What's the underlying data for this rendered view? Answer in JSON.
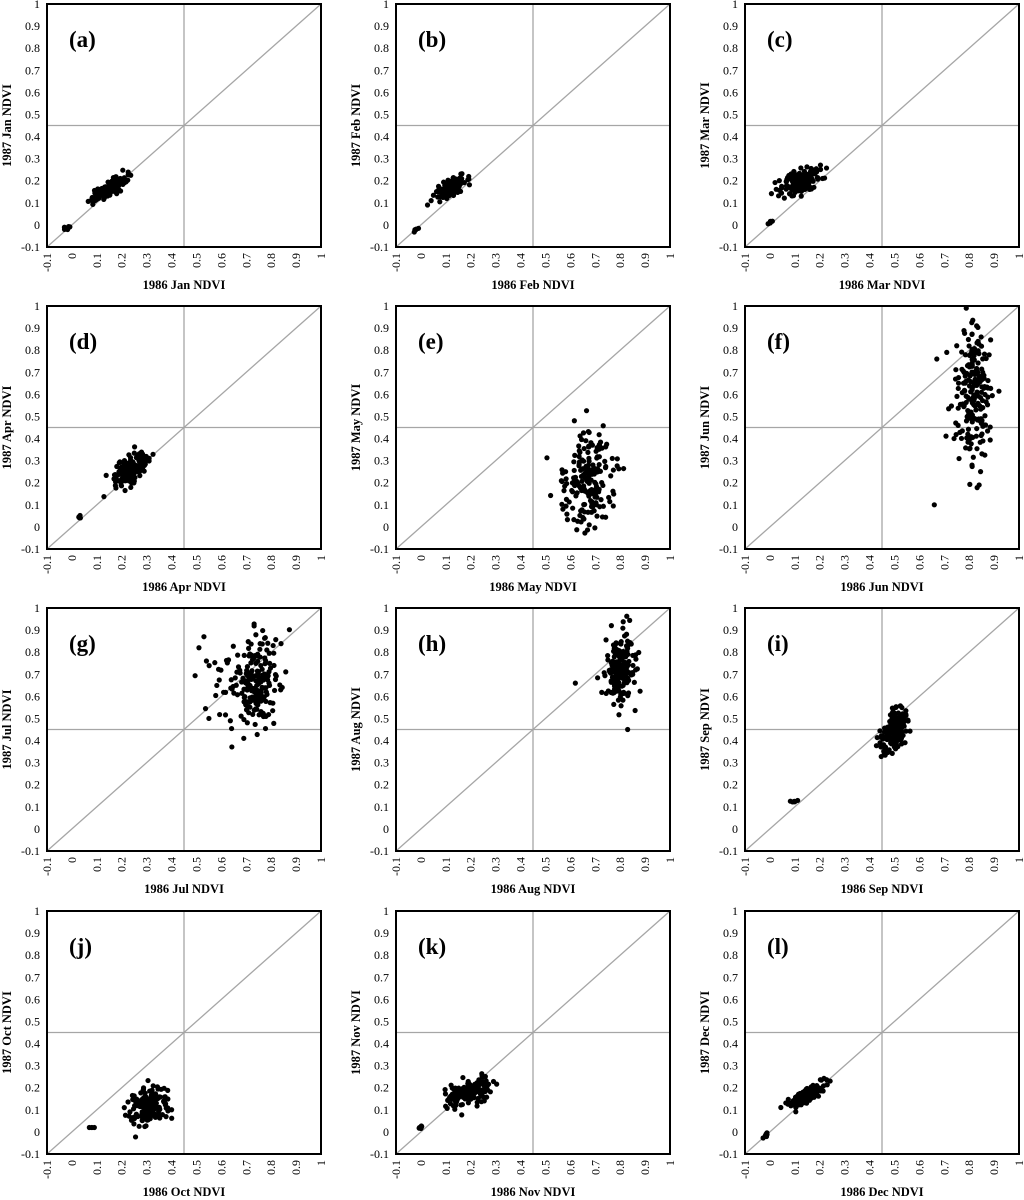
{
  "chart_data": [
    {
      "type": "scatter",
      "panel_label": "(a)",
      "xlabel": "1986 Jan NDVI",
      "ylabel": "1987 Jan NDVI",
      "xlim": [
        -0.1,
        1
      ],
      "ylim": [
        -0.1,
        1
      ],
      "xticks": [
        "-0.1",
        "0",
        "0.1",
        "0.2",
        "0.3",
        "0.4",
        "0.5",
        "0.6",
        "0.7",
        "0.8",
        "0.9",
        "1"
      ],
      "yticks": [
        "-0.1",
        "0",
        "0.1",
        "0.2",
        "0.3",
        "0.4",
        "0.5",
        "0.6",
        "0.7",
        "0.8",
        "0.9",
        "1"
      ],
      "reference_lines": {
        "x": 0.45,
        "y": 0.45,
        "diagonal": true
      },
      "clusters": [
        {
          "cx": 0.145,
          "cy": 0.16,
          "sx": 0.035,
          "sy": 0.03,
          "n": 150,
          "rho": 0.82
        },
        {
          "cx": -0.02,
          "cy": -0.015,
          "sx": 0.006,
          "sy": 0.006,
          "n": 6,
          "rho": 0.5
        }
      ]
    },
    {
      "type": "scatter",
      "panel_label": "(b)",
      "xlabel": "1986 Feb NDVI",
      "ylabel": "1987 Feb NDVI",
      "xlim": [
        -0.1,
        1
      ],
      "ylim": [
        -0.1,
        1
      ],
      "xticks": [
        "-0.1",
        "0",
        "0.1",
        "0.2",
        "0.3",
        "0.4",
        "0.5",
        "0.6",
        "0.7",
        "0.8",
        "0.9",
        "1"
      ],
      "yticks": [
        "-0.1",
        "0",
        "0.1",
        "0.2",
        "0.3",
        "0.4",
        "0.5",
        "0.6",
        "0.7",
        "0.8",
        "0.9",
        "1"
      ],
      "reference_lines": {
        "x": 0.45,
        "y": 0.45,
        "diagonal": true
      },
      "clusters": [
        {
          "cx": 0.12,
          "cy": 0.17,
          "sx": 0.03,
          "sy": 0.025,
          "n": 150,
          "rho": 0.7
        },
        {
          "cx": -0.015,
          "cy": -0.015,
          "sx": 0.006,
          "sy": 0.006,
          "n": 6,
          "rho": 0.5
        }
      ]
    },
    {
      "type": "scatter",
      "panel_label": "(c)",
      "xlabel": "1986 Mar NDVI",
      "ylabel": "1987 Mar NDVI",
      "xlim": [
        -0.1,
        1
      ],
      "ylim": [
        -0.1,
        1
      ],
      "xticks": [
        "-0.1",
        "0",
        "0.1",
        "0.2",
        "0.3",
        "0.4",
        "0.5",
        "0.6",
        "0.7",
        "0.8",
        "0.9",
        "1"
      ],
      "yticks": [
        "-0.1",
        "0",
        "0.1",
        "0.2",
        "0.3",
        "0.4",
        "0.5",
        "0.6",
        "0.7",
        "0.8",
        "0.9",
        "1"
      ],
      "reference_lines": {
        "x": 0.45,
        "y": 0.45,
        "diagonal": true
      },
      "clusters": [
        {
          "cx": 0.12,
          "cy": 0.2,
          "sx": 0.04,
          "sy": 0.03,
          "n": 180,
          "rho": 0.45
        },
        {
          "cx": 0.0,
          "cy": 0.01,
          "sx": 0.005,
          "sy": 0.005,
          "n": 5,
          "rho": 0.5
        }
      ]
    },
    {
      "type": "scatter",
      "panel_label": "(d)",
      "xlabel": "1986 Apr NDVI",
      "ylabel": "1987 Apr NDVI",
      "xlim": [
        -0.1,
        1
      ],
      "ylim": [
        -0.1,
        1
      ],
      "xticks": [
        "-0.1",
        "0",
        "0.1",
        "0.2",
        "0.3",
        "0.4",
        "0.5",
        "0.6",
        "0.7",
        "0.8",
        "0.9",
        "1"
      ],
      "yticks": [
        "-0.1",
        "0",
        "0.1",
        "0.2",
        "0.3",
        "0.4",
        "0.5",
        "0.6",
        "0.7",
        "0.8",
        "0.9",
        "1"
      ],
      "reference_lines": {
        "x": 0.45,
        "y": 0.45,
        "diagonal": true
      },
      "clusters": [
        {
          "cx": 0.24,
          "cy": 0.27,
          "sx": 0.035,
          "sy": 0.04,
          "n": 160,
          "rho": 0.55
        },
        {
          "cx": 0.03,
          "cy": 0.045,
          "sx": 0.004,
          "sy": 0.004,
          "n": 5,
          "rho": 0.5
        }
      ]
    },
    {
      "type": "scatter",
      "panel_label": "(e)",
      "xlabel": "1986 May NDVI",
      "ylabel": "1987 May NDVI",
      "xlim": [
        -0.1,
        1
      ],
      "ylim": [
        -0.1,
        1
      ],
      "xticks": [
        "-0.1",
        "0",
        "0.1",
        "0.2",
        "0.3",
        "0.4",
        "0.5",
        "0.6",
        "0.7",
        "0.8",
        "0.9",
        "1"
      ],
      "yticks": [
        "-0.1",
        "0",
        "0.1",
        "0.2",
        "0.3",
        "0.4",
        "0.5",
        "0.6",
        "0.7",
        "0.8",
        "0.9",
        "1"
      ],
      "reference_lines": {
        "x": 0.45,
        "y": 0.45,
        "diagonal": true
      },
      "clusters": [
        {
          "cx": 0.67,
          "cy": 0.21,
          "sx": 0.055,
          "sy": 0.11,
          "n": 180,
          "rho": 0.05
        }
      ]
    },
    {
      "type": "scatter",
      "panel_label": "(f)",
      "xlabel": "1986 Jun NDVI",
      "ylabel": "1987 Jun NDVI",
      "xlim": [
        -0.1,
        1
      ],
      "ylim": [
        -0.1,
        1
      ],
      "xticks": [
        "-0.1",
        "0",
        "0.1",
        "0.2",
        "0.3",
        "0.4",
        "0.5",
        "0.6",
        "0.7",
        "0.8",
        "0.9",
        "1"
      ],
      "yticks": [
        "-0.1",
        "0",
        "0.1",
        "0.2",
        "0.3",
        "0.4",
        "0.5",
        "0.6",
        "0.7",
        "0.8",
        "0.9",
        "1"
      ],
      "reference_lines": {
        "x": 0.45,
        "y": 0.45,
        "diagonal": true
      },
      "clusters": [
        {
          "cx": 0.82,
          "cy": 0.6,
          "sx": 0.035,
          "sy": 0.15,
          "n": 200,
          "rho": 0.0
        }
      ],
      "points": [
        [
          0.66,
          0.1
        ],
        [
          0.67,
          0.76
        ],
        [
          0.71,
          0.79
        ],
        [
          0.75,
          0.82
        ],
        [
          0.83,
          0.91
        ],
        [
          0.84,
          0.19
        ]
      ]
    },
    {
      "type": "scatter",
      "panel_label": "(g)",
      "xlabel": "1986 Jul NDVI",
      "ylabel": "1987 Jul NDVI",
      "xlim": [
        -0.1,
        1
      ],
      "ylim": [
        -0.1,
        1
      ],
      "xticks": [
        "-0.1",
        "0",
        "0.1",
        "0.2",
        "0.3",
        "0.4",
        "0.5",
        "0.6",
        "0.7",
        "0.8",
        "0.9",
        "1"
      ],
      "yticks": [
        "-0.1",
        "0",
        "0.1",
        "0.2",
        "0.3",
        "0.4",
        "0.5",
        "0.6",
        "0.7",
        "0.8",
        "0.9",
        "1"
      ],
      "reference_lines": {
        "x": 0.45,
        "y": 0.45,
        "diagonal": true
      },
      "clusters": [
        {
          "cx": 0.75,
          "cy": 0.66,
          "sx": 0.045,
          "sy": 0.1,
          "n": 180,
          "rho": 0.1
        },
        {
          "cx": 0.62,
          "cy": 0.68,
          "sx": 0.07,
          "sy": 0.09,
          "n": 30,
          "rho": 0.2
        }
      ],
      "points": [
        [
          0.51,
          0.82
        ],
        [
          0.53,
          0.87
        ],
        [
          0.54,
          0.76
        ],
        [
          0.55,
          0.5
        ],
        [
          0.69,
          0.41
        ]
      ]
    },
    {
      "type": "scatter",
      "panel_label": "(h)",
      "xlabel": "1986 Aug NDVI",
      "ylabel": "1987 Aug NDVI",
      "xlim": [
        -0.1,
        1
      ],
      "ylim": [
        -0.1,
        1
      ],
      "xticks": [
        "-0.1",
        "0",
        "0.1",
        "0.2",
        "0.3",
        "0.4",
        "0.5",
        "0.6",
        "0.7",
        "0.8",
        "0.9",
        "1"
      ],
      "yticks": [
        "-0.1",
        "0",
        "0.1",
        "0.2",
        "0.3",
        "0.4",
        "0.5",
        "0.6",
        "0.7",
        "0.8",
        "0.9",
        "1"
      ],
      "reference_lines": {
        "x": 0.45,
        "y": 0.45,
        "diagonal": true
      },
      "clusters": [
        {
          "cx": 0.8,
          "cy": 0.72,
          "sx": 0.03,
          "sy": 0.08,
          "n": 170,
          "rho": 0.1
        }
      ],
      "points": [
        [
          0.62,
          0.66
        ],
        [
          0.83,
          0.45
        ]
      ]
    },
    {
      "type": "scatter",
      "panel_label": "(i)",
      "xlabel": "1986 Sep NDVI",
      "ylabel": "1987 Sep NDVI",
      "xlim": [
        -0.1,
        1
      ],
      "ylim": [
        -0.1,
        1
      ],
      "xticks": [
        "-0.1",
        "0",
        "0.1",
        "0.2",
        "0.3",
        "0.4",
        "0.5",
        "0.6",
        "0.7",
        "0.8",
        "0.9",
        "1"
      ],
      "yticks": [
        "-0.1",
        "0",
        "0.1",
        "0.2",
        "0.3",
        "0.4",
        "0.5",
        "0.6",
        "0.7",
        "0.8",
        "0.9",
        "1"
      ],
      "reference_lines": {
        "x": 0.45,
        "y": 0.45,
        "diagonal": true
      },
      "clusters": [
        {
          "cx": 0.5,
          "cy": 0.44,
          "sx": 0.025,
          "sy": 0.05,
          "n": 170,
          "rho": 0.35
        },
        {
          "cx": 0.1,
          "cy": 0.125,
          "sx": 0.008,
          "sy": 0.004,
          "n": 6,
          "rho": 0.5
        }
      ]
    },
    {
      "type": "scatter",
      "panel_label": "(j)",
      "xlabel": "1986 Oct NDVI",
      "ylabel": "1987 Oct NDVI",
      "xlim": [
        -0.1,
        1
      ],
      "ylim": [
        -0.1,
        1
      ],
      "xticks": [
        "-0.1",
        "0",
        "0.1",
        "0.2",
        "0.3",
        "0.4",
        "0.5",
        "0.6",
        "0.7",
        "0.8",
        "0.9",
        "1"
      ],
      "yticks": [
        "-0.1",
        "0",
        "0.1",
        "0.2",
        "0.3",
        "0.4",
        "0.5",
        "0.6",
        "0.7",
        "0.8",
        "0.9",
        "1"
      ],
      "reference_lines": {
        "x": 0.45,
        "y": 0.45,
        "diagonal": true
      },
      "clusters": [
        {
          "cx": 0.31,
          "cy": 0.12,
          "sx": 0.04,
          "sy": 0.04,
          "n": 170,
          "rho": 0.2
        }
      ],
      "points": [
        [
          0.07,
          0.02
        ],
        [
          0.08,
          0.02
        ],
        [
          0.09,
          0.02
        ]
      ]
    },
    {
      "type": "scatter",
      "panel_label": "(k)",
      "xlabel": "1986 Nov NDVI",
      "ylabel": "1987 Nov NDVI",
      "xlim": [
        -0.1,
        1
      ],
      "ylim": [
        -0.1,
        1
      ],
      "xticks": [
        "-0.1",
        "0",
        "0.1",
        "0.2",
        "0.3",
        "0.4",
        "0.5",
        "0.6",
        "0.7",
        "0.8",
        "0.9",
        "1"
      ],
      "yticks": [
        "-0.1",
        "0",
        "0.1",
        "0.2",
        "0.3",
        "0.4",
        "0.5",
        "0.6",
        "0.7",
        "0.8",
        "0.9",
        "1"
      ],
      "reference_lines": {
        "x": 0.45,
        "y": 0.45,
        "diagonal": true
      },
      "clusters": [
        {
          "cx": 0.19,
          "cy": 0.18,
          "sx": 0.045,
          "sy": 0.03,
          "n": 180,
          "rho": 0.55
        },
        {
          "cx": 0.0,
          "cy": 0.025,
          "sx": 0.005,
          "sy": 0.005,
          "n": 6,
          "rho": 0.5
        }
      ]
    },
    {
      "type": "scatter",
      "panel_label": "(l)",
      "xlabel": "1986 Dec NDVI",
      "ylabel": "1987 Dec NDVI",
      "xlim": [
        -0.1,
        1
      ],
      "ylim": [
        -0.1,
        1
      ],
      "xticks": [
        "-0.1",
        "0",
        "0.1",
        "0.2",
        "0.3",
        "0.4",
        "0.5",
        "0.6",
        "0.7",
        "0.8",
        "0.9",
        "1"
      ],
      "yticks": [
        "-0.1",
        "0",
        "0.1",
        "0.2",
        "0.3",
        "0.4",
        "0.5",
        "0.6",
        "0.7",
        "0.8",
        "0.9",
        "1"
      ],
      "reference_lines": {
        "x": 0.45,
        "y": 0.45,
        "diagonal": true
      },
      "clusters": [
        {
          "cx": 0.14,
          "cy": 0.16,
          "sx": 0.035,
          "sy": 0.03,
          "n": 150,
          "rho": 0.82
        },
        {
          "cx": -0.02,
          "cy": -0.015,
          "sx": 0.006,
          "sy": 0.006,
          "n": 6,
          "rho": 0.5
        }
      ]
    }
  ],
  "colors": {
    "axis": "#000000",
    "reference": "#a6a6a6",
    "point": "#000000",
    "background": "#ffffff"
  }
}
